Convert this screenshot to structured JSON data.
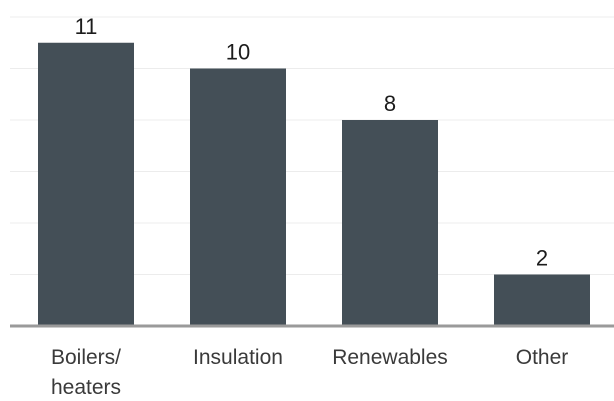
{
  "chart_data": {
    "type": "bar",
    "categories": [
      [
        "Boilers/",
        "heaters"
      ],
      [
        "Insulation"
      ],
      [
        "Renewables"
      ],
      [
        "Other"
      ]
    ],
    "values": [
      11,
      10,
      8,
      2
    ],
    "title": "",
    "xlabel": "",
    "ylabel": "",
    "ylim": [
      0,
      12
    ],
    "grid": true,
    "legend": "none",
    "colors": {
      "bar": "#444f57",
      "grid": "#ececec",
      "baseline": "#9a9a9a",
      "label": "#1c1c1c"
    }
  }
}
